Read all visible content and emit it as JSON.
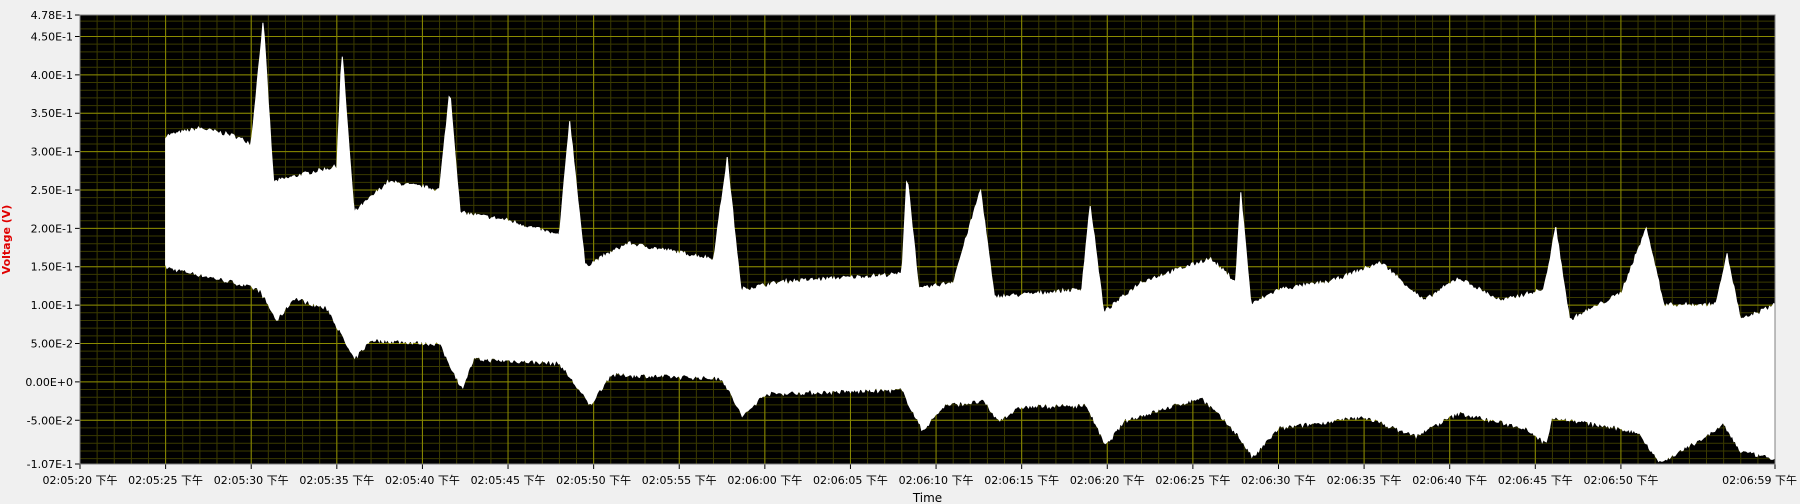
{
  "chart_data": {
    "type": "area",
    "title": "",
    "xlabel": "Time",
    "ylabel": "Voltage (V)",
    "ylim": [
      -0.107,
      0.478
    ],
    "xlim_seconds": [
      "02:05:20",
      "02:06:59"
    ],
    "y_ticks": [
      "4.78E-1",
      "4.50E-1",
      "4.00E-1",
      "3.50E-1",
      "3.00E-1",
      "2.50E-1",
      "2.00E-1",
      "1.50E-1",
      "1.00E-1",
      "5.00E-2",
      "0.00E+0",
      "-5.00E-2",
      "-1.07E-1"
    ],
    "y_tick_values": [
      0.478,
      0.45,
      0.4,
      0.35,
      0.3,
      0.25,
      0.2,
      0.15,
      0.1,
      0.05,
      0.0,
      -0.05,
      -0.107
    ],
    "x_ticks": [
      "02:05:20 下午",
      "02:05:25 下午",
      "02:05:30 下午",
      "02:05:35 下午",
      "02:05:40 下午",
      "02:05:45 下午",
      "02:05:50 下午",
      "02:05:55 下午",
      "02:06:00 下午",
      "02:06:05 下午",
      "02:06:10 下午",
      "02:06:15 下午",
      "02:06:20 下午",
      "02:06:25 下午",
      "02:06:30 下午",
      "02:06:35 下午",
      "02:06:40 下午",
      "02:06:45 下午",
      "02:06:50 下午",
      "02:06:59 下午"
    ],
    "x_tick_times": [
      "02:05:20",
      "02:05:25",
      "02:05:30",
      "02:05:35",
      "02:05:40",
      "02:05:45",
      "02:05:50",
      "02:05:55",
      "02:06:00",
      "02:06:05",
      "02:06:10",
      "02:06:15",
      "02:06:20",
      "02:06:25",
      "02:06:30",
      "02:06:35",
      "02:06:40",
      "02:06:45",
      "02:06:50",
      "02:06:59"
    ],
    "upper_envelope": [
      [
        "02:05:25",
        0.32
      ],
      [
        "02:05:27",
        0.33
      ],
      [
        "02:05:29",
        0.32
      ],
      [
        "02:05:30",
        0.31
      ],
      [
        "02:05:30.7",
        0.47
      ],
      [
        "02:05:31.3",
        0.26
      ],
      [
        "02:05:33",
        0.27
      ],
      [
        "02:05:35",
        0.28
      ],
      [
        "02:05:35.3",
        0.43
      ],
      [
        "02:05:36",
        0.22
      ],
      [
        "02:05:38",
        0.26
      ],
      [
        "02:05:41",
        0.25
      ],
      [
        "02:05:41.6",
        0.38
      ],
      [
        "02:05:42.2",
        0.22
      ],
      [
        "02:05:45",
        0.21
      ],
      [
        "02:05:48",
        0.19
      ],
      [
        "02:05:48.6",
        0.34
      ],
      [
        "02:05:49.5",
        0.15
      ],
      [
        "02:05:52",
        0.18
      ],
      [
        "02:05:57",
        0.16
      ],
      [
        "02:05:57.8",
        0.29
      ],
      [
        "02:05:58.6",
        0.12
      ],
      [
        "02:06:01",
        0.13
      ],
      [
        "02:06:08",
        0.14
      ],
      [
        "02:06:08.3",
        0.27
      ],
      [
        "02:06:09",
        0.12
      ],
      [
        "02:06:11",
        0.13
      ],
      [
        "02:06:12.6",
        0.25
      ],
      [
        "02:06:13.4",
        0.11
      ],
      [
        "02:06:16",
        0.115
      ],
      [
        "02:06:18.5",
        0.12
      ],
      [
        "02:06:19",
        0.23
      ],
      [
        "02:06:19.8",
        0.09
      ],
      [
        "02:06:22",
        0.13
      ],
      [
        "02:06:26",
        0.16
      ],
      [
        "02:06:27.5",
        0.13
      ],
      [
        "02:06:27.8",
        0.245
      ],
      [
        "02:06:28.4",
        0.1
      ],
      [
        "02:06:30",
        0.12
      ],
      [
        "02:06:33",
        0.13
      ],
      [
        "02:06:36",
        0.155
      ],
      [
        "02:06:38.5",
        0.105
      ],
      [
        "02:06:40.5",
        0.135
      ],
      [
        "02:06:43",
        0.105
      ],
      [
        "02:06:45.5",
        0.12
      ],
      [
        "02:06:46.2",
        0.2
      ],
      [
        "02:06:47",
        0.08
      ],
      [
        "02:06:50",
        0.115
      ],
      [
        "02:06:51.5",
        0.2
      ],
      [
        "02:06:52.5",
        0.1
      ],
      [
        "02:06:55.5",
        0.1
      ],
      [
        "02:06:56.2",
        0.165
      ],
      [
        "02:06:57",
        0.08
      ],
      [
        "02:06:59",
        0.1
      ]
    ],
    "lower_envelope": [
      [
        "02:05:25",
        0.15
      ],
      [
        "02:05:27",
        0.14
      ],
      [
        "02:05:29",
        0.13
      ],
      [
        "02:05:30.5",
        0.12
      ],
      [
        "02:05:31.5",
        0.08
      ],
      [
        "02:05:32.5",
        0.11
      ],
      [
        "02:05:34.5",
        0.095
      ],
      [
        "02:05:36",
        0.03
      ],
      [
        "02:05:37",
        0.055
      ],
      [
        "02:05:41",
        0.05
      ],
      [
        "02:05:42.3",
        -0.008
      ],
      [
        "02:05:43",
        0.03
      ],
      [
        "02:05:48",
        0.025
      ],
      [
        "02:05:49.8",
        -0.03
      ],
      [
        "02:05:51",
        0.01
      ],
      [
        "02:05:57.5",
        0.005
      ],
      [
        "02:05:58.7",
        -0.045
      ],
      [
        "02:06:00",
        -0.015
      ],
      [
        "02:06:08",
        -0.01
      ],
      [
        "02:06:09.2",
        -0.063
      ],
      [
        "02:06:10.5",
        -0.03
      ],
      [
        "02:06:12.8",
        -0.025
      ],
      [
        "02:06:13.6",
        -0.05
      ],
      [
        "02:06:15",
        -0.032
      ],
      [
        "02:06:18.8",
        -0.03
      ],
      [
        "02:06:19.9",
        -0.083
      ],
      [
        "02:06:21",
        -0.05
      ],
      [
        "02:06:25.5",
        -0.02
      ],
      [
        "02:06:27.5",
        -0.065
      ],
      [
        "02:06:28.5",
        -0.098
      ],
      [
        "02:06:30",
        -0.06
      ],
      [
        "02:06:35",
        -0.045
      ],
      [
        "02:06:38",
        -0.07
      ],
      [
        "02:06:40.5",
        -0.04
      ],
      [
        "02:06:44.5",
        -0.06
      ],
      [
        "02:06:45.6",
        -0.08
      ],
      [
        "02:06:46",
        -0.045
      ],
      [
        "02:06:51",
        -0.065
      ],
      [
        "02:06:52.3",
        -0.105
      ],
      [
        "02:06:55",
        -0.07
      ],
      [
        "02:06:56",
        -0.055
      ],
      [
        "02:06:57",
        -0.09
      ],
      [
        "02:06:59",
        -0.1
      ]
    ],
    "colors": {
      "plot_bg": "#000000",
      "grid": "#8b8b00",
      "minor_grid": "#3a3a00",
      "trace": "#ffffff",
      "ylabel": "#e00000",
      "frame_bg": "#f0f0f0"
    },
    "grid": true
  }
}
